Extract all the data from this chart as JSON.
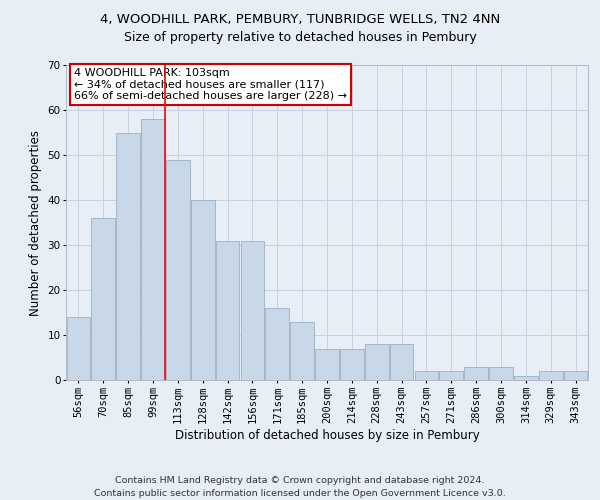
{
  "title": "4, WOODHILL PARK, PEMBURY, TUNBRIDGE WELLS, TN2 4NN",
  "subtitle": "Size of property relative to detached houses in Pembury",
  "xlabel": "Distribution of detached houses by size in Pembury",
  "ylabel": "Number of detached properties",
  "categories": [
    "56sqm",
    "70sqm",
    "85sqm",
    "99sqm",
    "113sqm",
    "128sqm",
    "142sqm",
    "156sqm",
    "171sqm",
    "185sqm",
    "200sqm",
    "214sqm",
    "228sqm",
    "243sqm",
    "257sqm",
    "271sqm",
    "286sqm",
    "300sqm",
    "314sqm",
    "329sqm",
    "343sqm"
  ],
  "values": [
    14,
    36,
    55,
    58,
    49,
    40,
    31,
    31,
    16,
    13,
    7,
    7,
    8,
    8,
    2,
    2,
    3,
    3,
    1,
    2,
    2
  ],
  "bar_color": "#c8d8e8",
  "bar_edge_color": "#9ab0c4",
  "grid_color": "#c8d0de",
  "background_color": "#e8eef6",
  "property_line_x": 3,
  "annotation_text": "4 WOODHILL PARK: 103sqm\n← 34% of detached houses are smaller (117)\n66% of semi-detached houses are larger (228) →",
  "annotation_box_color": "#ffffff",
  "annotation_border_color": "#cc0000",
  "footer_line1": "Contains HM Land Registry data © Crown copyright and database right 2024.",
  "footer_line2": "Contains public sector information licensed under the Open Government Licence v3.0.",
  "title_fontsize": 9.5,
  "subtitle_fontsize": 9,
  "axis_label_fontsize": 8.5,
  "tick_fontsize": 7.5,
  "annotation_fontsize": 8,
  "footer_fontsize": 6.8,
  "ylim": [
    0,
    70
  ],
  "yticks": [
    0,
    10,
    20,
    30,
    40,
    50,
    60,
    70
  ]
}
